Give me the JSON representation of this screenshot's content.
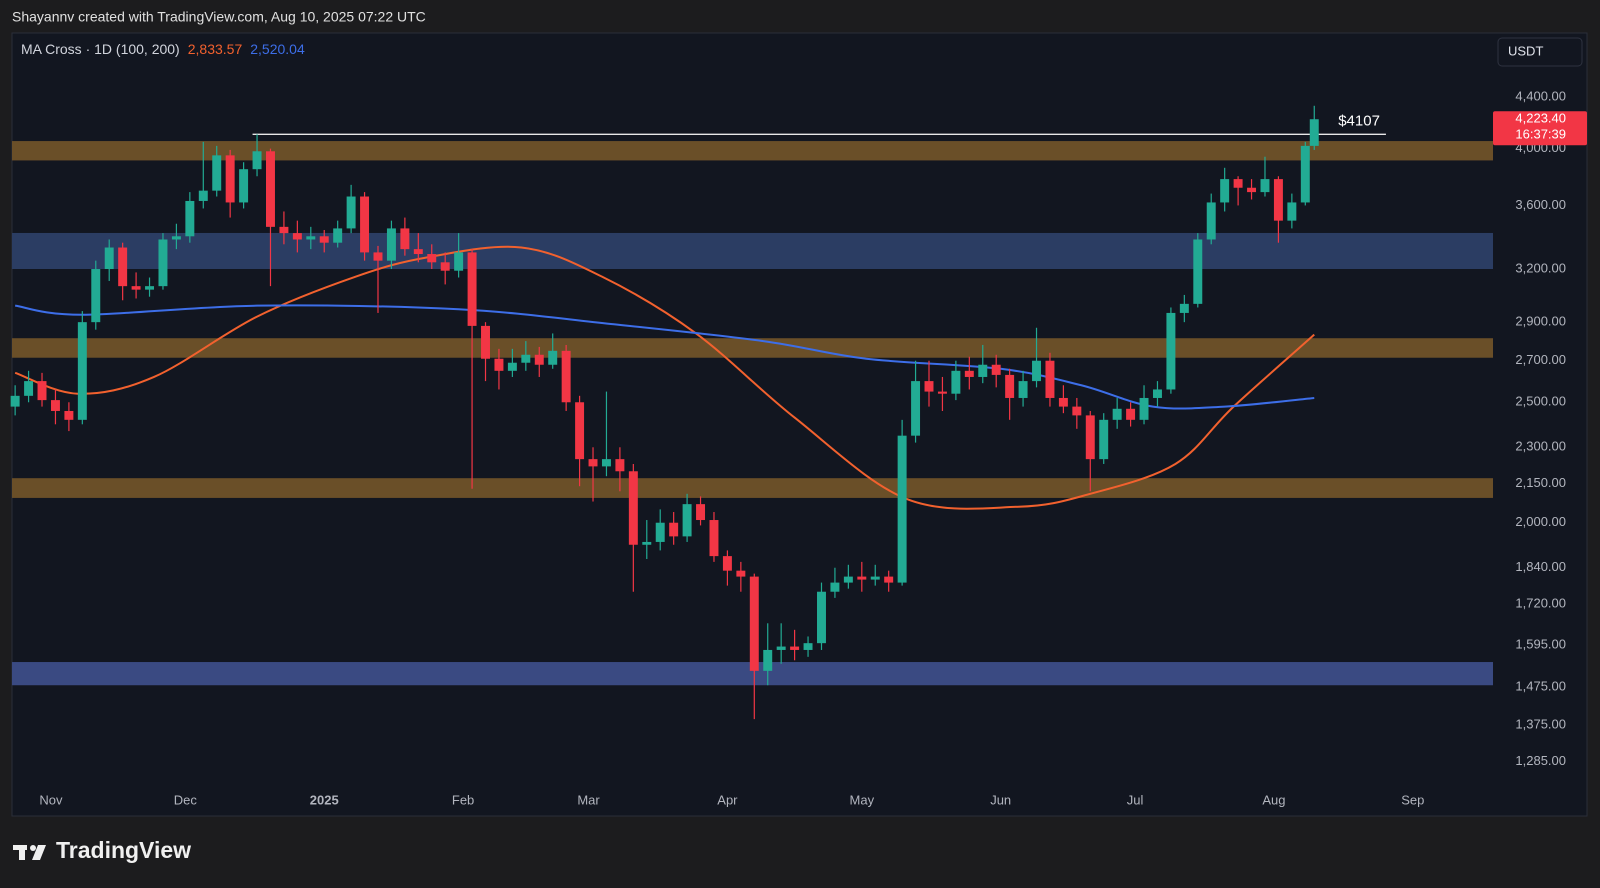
{
  "header": {
    "credit": "Shayannv created with TradingView.com, Aug 10, 2025 07:22 UTC"
  },
  "footer": {
    "brand": "TradingView"
  },
  "chart_data": {
    "type": "candlestick",
    "legend": "MA Cross · 1D (100, 200)",
    "currency": "USDT",
    "log_scale": true,
    "grid": false,
    "up_color": "#22ab94",
    "down_color": "#f23645",
    "xlim": [
      -8.7,
      321.9
    ],
    "ylim": [
      1228,
      4955
    ],
    "xticks": [
      {
        "value": 0,
        "label": "Nov"
      },
      {
        "value": 30,
        "label": "Dec"
      },
      {
        "value": 61,
        "label": "2025"
      },
      {
        "value": 92,
        "label": "Feb"
      },
      {
        "value": 120,
        "label": "Mar"
      },
      {
        "value": 151,
        "label": "Apr"
      },
      {
        "value": 181,
        "label": "May"
      },
      {
        "value": 212,
        "label": "Jun"
      },
      {
        "value": 242,
        "label": "Jul"
      },
      {
        "value": 273,
        "label": "Aug"
      },
      {
        "value": 304,
        "label": "Sep"
      }
    ],
    "yticks": [
      {
        "value": 4400,
        "label": "4,400.00"
      },
      {
        "value": 4000,
        "label": "4,000.00"
      },
      {
        "value": 3600,
        "label": "3,600.00"
      },
      {
        "value": 3200,
        "label": "3,200.00"
      },
      {
        "value": 2900,
        "label": "2,900.00"
      },
      {
        "value": 2700,
        "label": "2,700.00"
      },
      {
        "value": 2500,
        "label": "2,500.00"
      },
      {
        "value": 2300,
        "label": "2,300.00"
      },
      {
        "value": 2150,
        "label": "2,150.00"
      },
      {
        "value": 2000,
        "label": "2,000.00"
      },
      {
        "value": 1840,
        "label": "1,840.00"
      },
      {
        "value": 1720,
        "label": "1,720.00"
      },
      {
        "value": 1595,
        "label": "1,595.00"
      },
      {
        "value": 1475,
        "label": "1,475.00"
      },
      {
        "value": 1375,
        "label": "1,375.00"
      },
      {
        "value": 1285,
        "label": "1,285.00"
      }
    ],
    "zones": [
      {
        "low": 3913,
        "high": 4056,
        "color": "#6a4f28"
      },
      {
        "low": 3200,
        "high": 3421,
        "color": "#2b3d63"
      },
      {
        "low": 2715,
        "high": 2815,
        "color": "#6a4f28"
      },
      {
        "low": 2094,
        "high": 2172,
        "color": "#6a4f28"
      },
      {
        "low": 1480,
        "high": 1545,
        "color": "#3a4a82"
      }
    ],
    "level": {
      "value": 4107,
      "label": "$4107",
      "x": [
        45,
        298
      ]
    },
    "price_label": {
      "value": 4223.4,
      "label": "4,223.40",
      "countdown": "16:37:39"
    },
    "ma_lines": [
      {
        "color": "#f2612e",
        "x": [
          -8,
          6,
          23,
          46,
          68,
          84,
          105,
          123,
          144,
          166,
          191,
          216,
          232,
          251,
          264,
          282
        ],
        "values": [
          2640,
          2540,
          2620,
          2930,
          3155,
          3270,
          3330,
          3155,
          2840,
          2430,
          2090,
          2060,
          2110,
          2230,
          2480,
          2833.57
        ],
        "value_labels": [
          null,
          null,
          null,
          null,
          null,
          null,
          null,
          null,
          null,
          null,
          null,
          null,
          null,
          null,
          null,
          "2,833.57"
        ]
      },
      {
        "color": "#3d6ee8",
        "x": [
          -8,
          7,
          46,
          91,
          125,
          159,
          182,
          212,
          230,
          246,
          262,
          282
        ],
        "values": [
          2990,
          2940,
          2990,
          2970,
          2890,
          2800,
          2710,
          2660,
          2580,
          2480,
          2480,
          2520.04
        ],
        "value_labels": [
          null,
          null,
          null,
          null,
          null,
          null,
          null,
          null,
          null,
          null,
          null,
          "2,520.04"
        ]
      }
    ],
    "candles": [
      [
        -8,
        2480,
        2580,
        2440,
        2530
      ],
      [
        -5,
        2530,
        2650,
        2500,
        2600
      ],
      [
        -2,
        2600,
        2640,
        2480,
        2510
      ],
      [
        1,
        2510,
        2560,
        2400,
        2460
      ],
      [
        4,
        2460,
        2500,
        2370,
        2420
      ],
      [
        7,
        2420,
        2960,
        2400,
        2900
      ],
      [
        10,
        2900,
        3250,
        2860,
        3200
      ],
      [
        13,
        3200,
        3380,
        3130,
        3330
      ],
      [
        16,
        3330,
        3360,
        3020,
        3100
      ],
      [
        19,
        3100,
        3180,
        3030,
        3080
      ],
      [
        22,
        3080,
        3150,
        3040,
        3100
      ],
      [
        25,
        3100,
        3420,
        3080,
        3380
      ],
      [
        28,
        3380,
        3480,
        3320,
        3400
      ],
      [
        31,
        3400,
        3690,
        3360,
        3630
      ],
      [
        34,
        3630,
        4050,
        3580,
        3700
      ],
      [
        37,
        3700,
        4020,
        3660,
        3950
      ],
      [
        40,
        3950,
        3990,
        3520,
        3620
      ],
      [
        43,
        3620,
        3900,
        3580,
        3850
      ],
      [
        46,
        3850,
        4107,
        3800,
        3980
      ],
      [
        49,
        3980,
        4000,
        3100,
        3460
      ],
      [
        52,
        3460,
        3560,
        3350,
        3420
      ],
      [
        55,
        3420,
        3500,
        3300,
        3380
      ],
      [
        58,
        3380,
        3460,
        3320,
        3400
      ],
      [
        61,
        3400,
        3440,
        3300,
        3360
      ],
      [
        64,
        3360,
        3500,
        3330,
        3450
      ],
      [
        67,
        3450,
        3740,
        3420,
        3660
      ],
      [
        70,
        3660,
        3690,
        3250,
        3300
      ],
      [
        73,
        3300,
        3340,
        2950,
        3250
      ],
      [
        76,
        3250,
        3500,
        3200,
        3450
      ],
      [
        79,
        3450,
        3520,
        3280,
        3320
      ],
      [
        82,
        3320,
        3420,
        3240,
        3290
      ],
      [
        85,
        3290,
        3350,
        3200,
        3240
      ],
      [
        88,
        3240,
        3300,
        3110,
        3190
      ],
      [
        91,
        3190,
        3420,
        3150,
        3300
      ],
      [
        94,
        3300,
        3320,
        2130,
        2880
      ],
      [
        97,
        2880,
        2900,
        2600,
        2710
      ],
      [
        100,
        2710,
        2760,
        2560,
        2650
      ],
      [
        103,
        2650,
        2760,
        2620,
        2690
      ],
      [
        106,
        2690,
        2800,
        2650,
        2730
      ],
      [
        109,
        2730,
        2770,
        2620,
        2680
      ],
      [
        112,
        2680,
        2840,
        2660,
        2750
      ],
      [
        115,
        2750,
        2780,
        2460,
        2500
      ],
      [
        118,
        2500,
        2530,
        2140,
        2250
      ],
      [
        121,
        2250,
        2300,
        2080,
        2220
      ],
      [
        124,
        2220,
        2550,
        2180,
        2250
      ],
      [
        127,
        2250,
        2300,
        2120,
        2200
      ],
      [
        130,
        2200,
        2230,
        1760,
        1920
      ],
      [
        133,
        1920,
        2010,
        1870,
        1930
      ],
      [
        136,
        1930,
        2050,
        1900,
        2000
      ],
      [
        139,
        2000,
        2040,
        1920,
        1950
      ],
      [
        142,
        1950,
        2110,
        1930,
        2070
      ],
      [
        145,
        2070,
        2100,
        1990,
        2010
      ],
      [
        148,
        2010,
        2040,
        1860,
        1880
      ],
      [
        151,
        1880,
        1900,
        1780,
        1830
      ],
      [
        154,
        1830,
        1860,
        1760,
        1810
      ],
      [
        157,
        1810,
        1820,
        1390,
        1520
      ],
      [
        160,
        1520,
        1660,
        1480,
        1580
      ],
      [
        163,
        1580,
        1660,
        1540,
        1590
      ],
      [
        166,
        1590,
        1640,
        1550,
        1580
      ],
      [
        169,
        1580,
        1620,
        1560,
        1600
      ],
      [
        172,
        1600,
        1790,
        1580,
        1760
      ],
      [
        175,
        1760,
        1840,
        1740,
        1790
      ],
      [
        178,
        1790,
        1850,
        1770,
        1810
      ],
      [
        181,
        1810,
        1860,
        1760,
        1800
      ],
      [
        184,
        1800,
        1850,
        1780,
        1810
      ],
      [
        187,
        1810,
        1830,
        1760,
        1790
      ],
      [
        190,
        1790,
        2420,
        1780,
        2350
      ],
      [
        193,
        2350,
        2700,
        2320,
        2600
      ],
      [
        196,
        2600,
        2700,
        2480,
        2550
      ],
      [
        199,
        2550,
        2620,
        2460,
        2540
      ],
      [
        202,
        2540,
        2700,
        2510,
        2650
      ],
      [
        205,
        2650,
        2720,
        2560,
        2620
      ],
      [
        208,
        2620,
        2780,
        2590,
        2680
      ],
      [
        211,
        2680,
        2730,
        2570,
        2630
      ],
      [
        214,
        2630,
        2660,
        2420,
        2520
      ],
      [
        217,
        2520,
        2650,
        2480,
        2600
      ],
      [
        220,
        2600,
        2870,
        2570,
        2700
      ],
      [
        223,
        2700,
        2740,
        2480,
        2520
      ],
      [
        226,
        2520,
        2580,
        2450,
        2480
      ],
      [
        229,
        2480,
        2520,
        2380,
        2440
      ],
      [
        232,
        2440,
        2460,
        2120,
        2250
      ],
      [
        235,
        2250,
        2450,
        2230,
        2420
      ],
      [
        238,
        2420,
        2520,
        2380,
        2470
      ],
      [
        241,
        2470,
        2500,
        2390,
        2420
      ],
      [
        244,
        2420,
        2580,
        2400,
        2520
      ],
      [
        247,
        2520,
        2600,
        2480,
        2560
      ],
      [
        250,
        2560,
        2980,
        2540,
        2950
      ],
      [
        253,
        2950,
        3050,
        2900,
        3000
      ],
      [
        256,
        3000,
        3420,
        2980,
        3380
      ],
      [
        259,
        3380,
        3680,
        3350,
        3620
      ],
      [
        262,
        3620,
        3860,
        3560,
        3780
      ],
      [
        265,
        3780,
        3800,
        3600,
        3720
      ],
      [
        268,
        3720,
        3780,
        3640,
        3690
      ],
      [
        271,
        3690,
        3940,
        3660,
        3780
      ],
      [
        274,
        3780,
        3800,
        3360,
        3500
      ],
      [
        277,
        3500,
        3680,
        3450,
        3620
      ],
      [
        280,
        3620,
        4050,
        3600,
        4020
      ],
      [
        282,
        4020,
        4330,
        3990,
        4223.4
      ]
    ]
  }
}
